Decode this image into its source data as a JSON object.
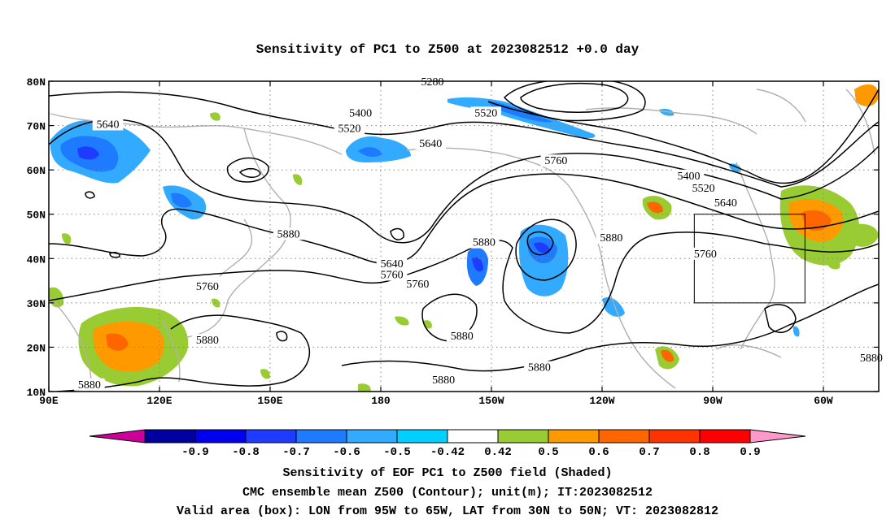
{
  "title": "Sensitivity of PC1 to Z500 at 2023082512 +0.0 day",
  "map": {
    "lat_ticks": [
      "80N",
      "70N",
      "60N",
      "50N",
      "40N",
      "30N",
      "20N",
      "10N"
    ],
    "lon_ticks": [
      "90E",
      "120E",
      "150E",
      "180",
      "150W",
      "120W",
      "90W",
      "60W"
    ],
    "contour_labels": [
      {
        "text": "5280",
        "lon": 194,
        "lat": 79.8
      },
      {
        "text": "5400",
        "lon": 174.5,
        "lat": 72.8
      },
      {
        "text": "5520",
        "lon": 208.5,
        "lat": 72.8
      },
      {
        "text": "5640",
        "lon": 106,
        "lat": 70.2
      },
      {
        "text": "5520",
        "lon": 171.5,
        "lat": 69.3
      },
      {
        "text": "5640",
        "lon": 193.5,
        "lat": 65.9
      },
      {
        "text": "5760",
        "lon": 227.5,
        "lat": 62.0
      },
      {
        "text": "5400",
        "lon": 263.5,
        "lat": 58.6
      },
      {
        "text": "5520",
        "lon": 267.5,
        "lat": 55.8
      },
      {
        "text": "5640",
        "lon": 273.5,
        "lat": 52.5
      },
      {
        "text": "5880",
        "lon": 242.5,
        "lat": 44.6
      },
      {
        "text": "5880",
        "lon": 155,
        "lat": 45.5
      },
      {
        "text": "5880",
        "lon": 208,
        "lat": 43.6
      },
      {
        "text": "5760",
        "lon": 268,
        "lat": 41.0
      },
      {
        "text": "5640",
        "lon": 183,
        "lat": 38.8
      },
      {
        "text": "5760",
        "lon": 183,
        "lat": 36.3
      },
      {
        "text": "5760",
        "lon": 190,
        "lat": 34.2
      },
      {
        "text": "5760",
        "lon": 133,
        "lat": 33.6
      },
      {
        "text": "5880",
        "lon": 202,
        "lat": 22.5
      },
      {
        "text": "5880",
        "lon": 133,
        "lat": 21.5
      },
      {
        "text": "5880",
        "lon": 313,
        "lat": 17.5
      },
      {
        "text": "5880",
        "lon": 223,
        "lat": 15.4
      },
      {
        "text": "5880",
        "lon": 197,
        "lat": 12.6
      },
      {
        "text": "5880",
        "lon": 101,
        "lat": 11.5
      }
    ],
    "valid_box": {
      "lon_min": 265,
      "lon_max": 295,
      "lat_min": 30,
      "lat_max": 50
    }
  },
  "colorbar": {
    "labels": [
      "-0.9",
      "-0.8",
      "-0.7",
      "-0.6",
      "-0.5",
      "-0.42",
      "0.42",
      "0.5",
      "0.6",
      "0.7",
      "0.8",
      "0.9"
    ],
    "colors": [
      "#cc0099",
      "#0000a0",
      "#0000ee",
      "#1e3cff",
      "#1e7aff",
      "#32aaff",
      "#00d0ff",
      "#ffffff",
      "#99cc33",
      "#ff9900",
      "#ff6600",
      "#ff3300",
      "#ff0000",
      "#ff99cc"
    ]
  },
  "captions": {
    "line1": "Sensitivity of EOF PC1 to Z500 field (Shaded)",
    "line2": "CMC ensemble mean Z500 (Contour); unit(m); IT:2023082512",
    "line3": "Valid area (box): LON from 95W to 65W, LAT from 30N to 50N; VT: 2023082812"
  }
}
